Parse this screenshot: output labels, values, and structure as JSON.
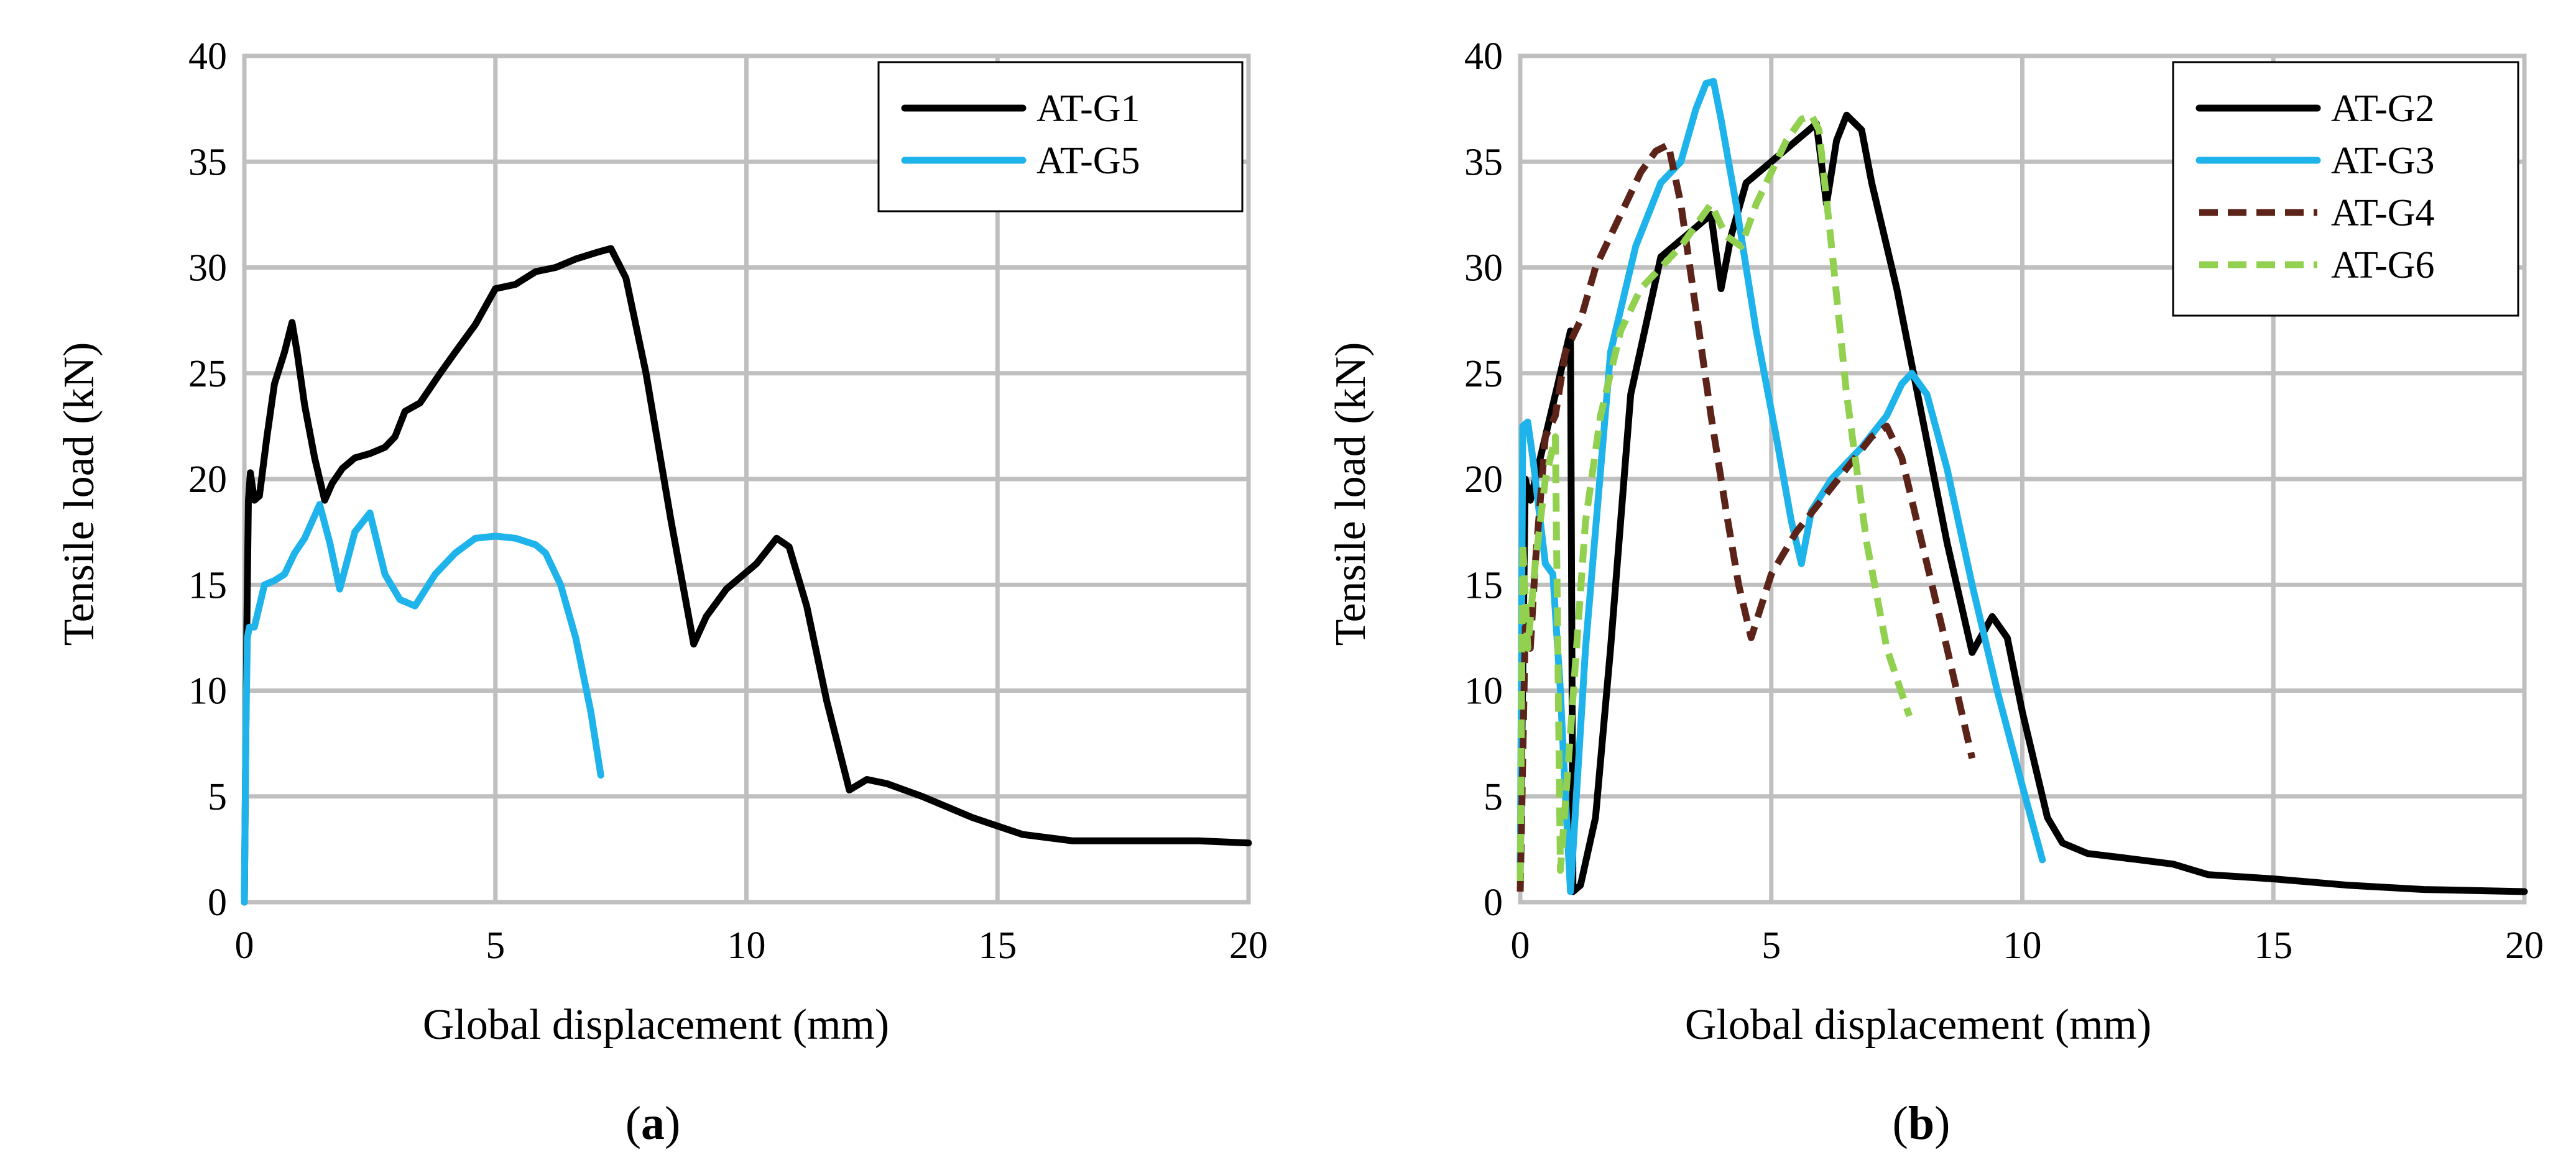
{
  "chart_data": [
    {
      "type": "line",
      "panel": "a",
      "caption_letter": "a",
      "caption_open": "(",
      "caption_close": ")",
      "xlabel": "Global displacement (mm)",
      "ylabel": "Tensile load (kN)",
      "xlim": [
        0,
        20
      ],
      "ylim": [
        0,
        40
      ],
      "xticks": [
        0,
        5,
        10,
        15,
        20
      ],
      "yticks": [
        0,
        5,
        10,
        15,
        20,
        25,
        30,
        35,
        40
      ],
      "grid": true,
      "legend_position": "top-right",
      "series": [
        {
          "name": "AT-G1",
          "color": "#000000",
          "dashed": false,
          "x": [
            0.0,
            0.05,
            0.08,
            0.12,
            0.2,
            0.3,
            0.45,
            0.6,
            0.8,
            0.95,
            1.05,
            1.2,
            1.4,
            1.6,
            1.75,
            1.95,
            2.2,
            2.5,
            2.8,
            3.0,
            3.2,
            3.5,
            3.9,
            4.2,
            4.6,
            5.0,
            5.4,
            5.8,
            6.2,
            6.6,
            7.0,
            7.3,
            7.6,
            8.0,
            8.5,
            8.95,
            9.2,
            9.6,
            10.2,
            10.6,
            10.85,
            11.2,
            11.6,
            12.05,
            12.4,
            12.8,
            13.5,
            14.5,
            15.5,
            16.5,
            17.5,
            19.0,
            20.0
          ],
          "y": [
            0.0,
            13.0,
            19.0,
            20.3,
            19.0,
            19.2,
            22.0,
            24.5,
            26.0,
            27.4,
            26.0,
            23.5,
            21.0,
            19.0,
            19.8,
            20.5,
            21.0,
            21.2,
            21.5,
            22.0,
            23.2,
            23.6,
            25.0,
            26.0,
            27.3,
            29.0,
            29.2,
            29.8,
            30.0,
            30.4,
            30.7,
            30.9,
            29.5,
            25.0,
            18.0,
            12.2,
            13.5,
            14.8,
            16.0,
            17.2,
            16.8,
            14.0,
            9.5,
            5.3,
            5.8,
            5.6,
            5.0,
            4.0,
            3.2,
            2.9,
            2.9,
            2.9,
            2.8
          ]
        },
        {
          "name": "AT-G5",
          "color": "#1eb4eb",
          "dashed": false,
          "x": [
            0.0,
            0.03,
            0.06,
            0.1,
            0.2,
            0.4,
            0.6,
            0.8,
            1.0,
            1.2,
            1.5,
            1.7,
            1.9,
            2.2,
            2.5,
            2.8,
            3.1,
            3.4,
            3.8,
            4.2,
            4.6,
            5.0,
            5.4,
            5.8,
            6.0,
            6.3,
            6.6,
            6.9,
            7.1
          ],
          "y": [
            0.0,
            8.0,
            12.5,
            13.0,
            13.0,
            15.0,
            15.2,
            15.5,
            16.5,
            17.2,
            18.8,
            17.0,
            14.8,
            17.5,
            18.4,
            15.5,
            14.3,
            14.0,
            15.5,
            16.5,
            17.2,
            17.3,
            17.2,
            16.9,
            16.5,
            15.0,
            12.5,
            9.0,
            6.0
          ]
        }
      ]
    },
    {
      "type": "line",
      "panel": "b",
      "caption_letter": "b",
      "caption_open": "(",
      "caption_close": ")",
      "xlabel": "Global displacement (mm)",
      "ylabel": "Tensile load (kN)",
      "xlim": [
        0,
        20
      ],
      "ylim": [
        0,
        40
      ],
      "xticks": [
        0,
        5,
        10,
        15,
        20
      ],
      "yticks": [
        0,
        5,
        10,
        15,
        20,
        25,
        30,
        35,
        40
      ],
      "grid": true,
      "legend_position": "top-right",
      "series": [
        {
          "name": "AT-G2",
          "color": "#000000",
          "dashed": false,
          "x": [
            0.0,
            0.1,
            0.2,
            0.5,
            0.8,
            1.0,
            1.05,
            1.2,
            1.5,
            1.8,
            2.2,
            2.8,
            3.3,
            3.8,
            4.0,
            4.2,
            4.5,
            5.0,
            5.5,
            5.9,
            6.1,
            6.3,
            6.5,
            6.8,
            7.0,
            7.5,
            8.0,
            8.5,
            9.0,
            9.4,
            9.7,
            10.0,
            10.3,
            10.5,
            10.8,
            11.3,
            12.0,
            13.0,
            13.7,
            15.0,
            16.5,
            18.0,
            20.0
          ],
          "y": [
            1.5,
            20.0,
            19.0,
            22.0,
            25.0,
            27.0,
            0.5,
            0.8,
            4.0,
            12.0,
            24.0,
            30.5,
            31.5,
            32.5,
            29.0,
            31.5,
            34.0,
            35.0,
            36.0,
            36.8,
            33.0,
            36.0,
            37.2,
            36.5,
            34.0,
            29.0,
            23.0,
            17.0,
            11.8,
            13.5,
            12.5,
            9.0,
            6.0,
            4.0,
            2.8,
            2.3,
            2.1,
            1.8,
            1.3,
            1.1,
            0.8,
            0.6,
            0.5
          ]
        },
        {
          "name": "AT-G3",
          "color": "#1eb4eb",
          "dashed": false,
          "x": [
            0.0,
            0.05,
            0.15,
            0.25,
            0.4,
            0.5,
            0.65,
            0.8,
            0.9,
            1.0,
            1.3,
            1.8,
            2.3,
            2.8,
            3.2,
            3.5,
            3.7,
            3.85,
            4.0,
            4.3,
            4.7,
            5.1,
            5.4,
            5.6,
            5.8,
            6.2,
            6.8,
            7.3,
            7.6,
            7.8,
            8.1,
            8.5,
            9.0,
            9.5,
            10.0,
            10.4
          ],
          "y": [
            1.0,
            22.5,
            22.7,
            21.0,
            18.0,
            16.0,
            15.5,
            10.0,
            5.0,
            0.5,
            12.0,
            26.0,
            31.0,
            34.0,
            35.0,
            37.5,
            38.7,
            38.8,
            37.0,
            33.0,
            27.0,
            22.0,
            18.0,
            16.0,
            18.5,
            20.0,
            21.5,
            23.0,
            24.5,
            25.0,
            24.0,
            20.5,
            15.0,
            10.0,
            5.5,
            2.0
          ]
        },
        {
          "name": "AT-G4",
          "color": "#5c2319",
          "dashed": true,
          "x": [
            0.0,
            0.1,
            0.2,
            0.3,
            0.5,
            0.7,
            0.9,
            1.2,
            1.5,
            1.8,
            2.1,
            2.4,
            2.7,
            2.95,
            3.2,
            3.5,
            3.8,
            4.1,
            4.35,
            4.6,
            5.0,
            5.5,
            6.0,
            6.5,
            7.0,
            7.3,
            7.6,
            8.0,
            8.5,
            9.0
          ],
          "y": [
            0.5,
            13.0,
            12.0,
            16.0,
            22.0,
            23.0,
            26.0,
            27.5,
            30.0,
            31.5,
            33.0,
            34.5,
            35.5,
            35.8,
            33.0,
            28.0,
            23.0,
            18.5,
            15.0,
            12.5,
            15.5,
            17.5,
            19.0,
            20.5,
            22.0,
            22.5,
            21.0,
            17.0,
            12.0,
            6.8
          ]
        },
        {
          "name": "AT-G6",
          "color": "#92d050",
          "dashed": true,
          "x": [
            0.0,
            0.05,
            0.15,
            0.3,
            0.5,
            0.7,
            0.8,
            1.0,
            1.3,
            1.6,
            2.0,
            2.4,
            2.8,
            3.2,
            3.5,
            3.8,
            4.1,
            4.4,
            4.7,
            5.0,
            5.3,
            5.6,
            5.8,
            5.95,
            6.2,
            6.5,
            6.9,
            7.3,
            7.75
          ],
          "y": [
            1.0,
            17.0,
            12.0,
            16.0,
            20.0,
            22.0,
            1.5,
            8.0,
            18.0,
            23.0,
            27.0,
            29.0,
            30.0,
            31.0,
            32.0,
            33.0,
            31.5,
            31.0,
            33.0,
            34.5,
            36.0,
            37.0,
            37.2,
            36.5,
            31.0,
            24.0,
            17.0,
            12.0,
            8.8
          ]
        }
      ]
    }
  ]
}
